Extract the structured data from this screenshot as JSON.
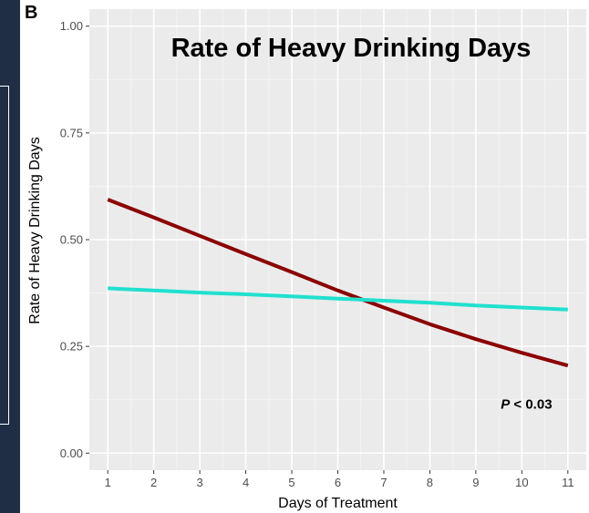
{
  "panel_label": "B",
  "chart_data": {
    "type": "line",
    "title": "Rate of Heavy Drinking Days",
    "xlabel": "Days of Treatment",
    "ylabel": "Rate of Heavy Drinking Days",
    "xlim": [
      0.6,
      11.4
    ],
    "ylim": [
      -0.04,
      1.04
    ],
    "x_ticks": [
      1,
      2,
      3,
      4,
      5,
      6,
      7,
      8,
      9,
      10,
      11
    ],
    "y_ticks": [
      0.0,
      0.25,
      0.5,
      0.75,
      1.0
    ],
    "y_tick_labels": [
      "0.00",
      "0.25",
      "0.50",
      "0.75",
      "1.00"
    ],
    "grid": true,
    "background": "#ebebeb",
    "x": [
      1,
      2,
      3,
      4,
      5,
      6,
      7,
      8,
      9,
      10,
      11
    ],
    "series": [
      {
        "color": "#8b0000",
        "values": [
          0.594,
          0.552,
          0.509,
          0.466,
          0.424,
          0.381,
          0.341,
          0.302,
          0.267,
          0.235,
          0.205
        ]
      },
      {
        "color": "#20e0cf",
        "values": [
          0.386,
          0.381,
          0.376,
          0.372,
          0.367,
          0.362,
          0.357,
          0.352,
          0.346,
          0.341,
          0.336
        ]
      }
    ],
    "annotations": [
      {
        "text_italic": "P",
        "text_rest": " < 0.03",
        "x": 10.1,
        "y": 0.115
      }
    ]
  }
}
